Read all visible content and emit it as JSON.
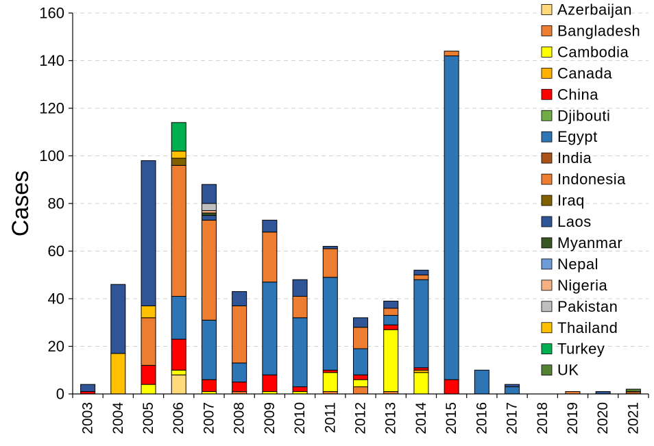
{
  "chart_data": {
    "type": "bar",
    "stacked": true,
    "title": "",
    "xlabel": "",
    "ylabel": "Cases",
    "ylim": [
      0,
      160
    ],
    "yticks": [
      "0",
      "20",
      "40",
      "60",
      "80",
      "100",
      "120",
      "140",
      "160"
    ],
    "grid": true,
    "legend_position": "right",
    "categories": [
      "2003",
      "2004",
      "2005",
      "2006",
      "2007",
      "2008",
      "2009",
      "2010",
      "2011",
      "2012",
      "2013",
      "2014",
      "2015",
      "2016",
      "2017",
      "2018",
      "2019",
      "2020",
      "2021"
    ],
    "series": [
      {
        "name": "Azerbaijan",
        "color": "#FFD97A",
        "values": [
          0,
          0,
          0,
          8,
          0,
          0,
          0,
          0,
          0,
          0,
          0,
          0,
          0,
          0,
          0,
          0,
          0,
          0,
          0
        ]
      },
      {
        "name": "Bangladesh",
        "color": "#ED7D31",
        "values": [
          0,
          0,
          0,
          0,
          0,
          1,
          0,
          0,
          1,
          3,
          1,
          0,
          0,
          0,
          0,
          0,
          0,
          0,
          0
        ]
      },
      {
        "name": "Cambodia",
        "color": "#FFFF00",
        "values": [
          0,
          0,
          4,
          2,
          1,
          0,
          1,
          1,
          8,
          3,
          26,
          9,
          0,
          0,
          0,
          0,
          0,
          0,
          0
        ]
      },
      {
        "name": "Canada",
        "color": "#FFB000",
        "values": [
          0,
          0,
          0,
          0,
          0,
          0,
          0,
          0,
          0,
          0,
          0,
          1,
          0,
          0,
          0,
          0,
          0,
          0,
          0
        ]
      },
      {
        "name": "China",
        "color": "#FF0000",
        "values": [
          1,
          0,
          8,
          13,
          5,
          4,
          7,
          2,
          1,
          2,
          2,
          1,
          6,
          0,
          0,
          0,
          0,
          0,
          0
        ]
      },
      {
        "name": "Djibouti",
        "color": "#70AD47",
        "values": [
          0,
          0,
          0,
          0,
          0,
          0,
          0,
          0,
          0,
          0,
          0,
          0,
          0,
          0,
          0,
          0,
          0,
          0,
          0
        ]
      },
      {
        "name": "Egypt",
        "color": "#2E75B6",
        "values": [
          0,
          0,
          0,
          18,
          25,
          8,
          39,
          29,
          39,
          11,
          4,
          37,
          136,
          10,
          3,
          0,
          0,
          0,
          0
        ]
      },
      {
        "name": "India",
        "color": "#A9531A",
        "values": [
          0,
          0,
          0,
          0,
          0,
          0,
          0,
          0,
          0,
          0,
          0,
          0,
          0,
          0,
          0,
          0,
          0,
          0,
          1
        ]
      },
      {
        "name": "Indonesia",
        "color": "#ED7D31",
        "values": [
          0,
          0,
          20,
          55,
          42,
          24,
          21,
          9,
          12,
          9,
          3,
          2,
          2,
          0,
          0,
          0,
          1,
          0,
          0
        ]
      },
      {
        "name": "Iraq",
        "color": "#806000",
        "values": [
          0,
          0,
          0,
          3,
          0,
          0,
          0,
          0,
          0,
          0,
          0,
          0,
          0,
          0,
          0,
          0,
          0,
          0,
          0
        ]
      },
      {
        "name": "Laos",
        "color": "#2F5597",
        "values": [
          0,
          0,
          0,
          0,
          2,
          0,
          0,
          0,
          0,
          0,
          0,
          0,
          0,
          0,
          0,
          0,
          0,
          0,
          0
        ]
      },
      {
        "name": "Myanmar",
        "color": "#375623",
        "values": [
          0,
          0,
          0,
          0,
          1,
          0,
          0,
          0,
          0,
          0,
          0,
          0,
          0,
          0,
          0,
          0,
          0,
          0,
          0
        ]
      },
      {
        "name": "Nepal",
        "color": "#6F9BD8",
        "values": [
          0,
          0,
          0,
          0,
          0,
          0,
          0,
          0,
          0,
          0,
          0,
          0,
          0,
          0,
          0,
          0,
          0,
          0,
          0
        ]
      },
      {
        "name": "Nigeria",
        "color": "#F4B183",
        "values": [
          0,
          0,
          0,
          0,
          1,
          0,
          0,
          0,
          0,
          0,
          0,
          0,
          0,
          0,
          0,
          0,
          0,
          0,
          0
        ]
      },
      {
        "name": "Pakistan",
        "color": "#BFBFBF",
        "values": [
          0,
          0,
          0,
          0,
          3,
          0,
          0,
          0,
          0,
          0,
          0,
          0,
          0,
          0,
          0,
          0,
          0,
          0,
          0
        ]
      },
      {
        "name": "Thailand",
        "color": "#FFC000",
        "values": [
          0,
          17,
          5,
          3,
          0,
          0,
          0,
          0,
          0,
          0,
          0,
          0,
          0,
          0,
          0,
          0,
          0,
          0,
          0
        ]
      },
      {
        "name": "Turkey",
        "color": "#00B050",
        "values": [
          0,
          0,
          0,
          12,
          0,
          0,
          0,
          0,
          0,
          0,
          0,
          0,
          0,
          0,
          0,
          0,
          0,
          0,
          0
        ]
      },
      {
        "name": "UK",
        "color": "#548235",
        "values": [
          0,
          0,
          0,
          0,
          0,
          0,
          0,
          0,
          0,
          0,
          0,
          0,
          0,
          0,
          0,
          0,
          0,
          0,
          1
        ]
      },
      {
        "name": "",
        "color": "#2F5597",
        "values": [
          3,
          29,
          61,
          0,
          8,
          6,
          5,
          7,
          1,
          4,
          3,
          2,
          0,
          0,
          1,
          0,
          0,
          1,
          0
        ]
      }
    ]
  }
}
